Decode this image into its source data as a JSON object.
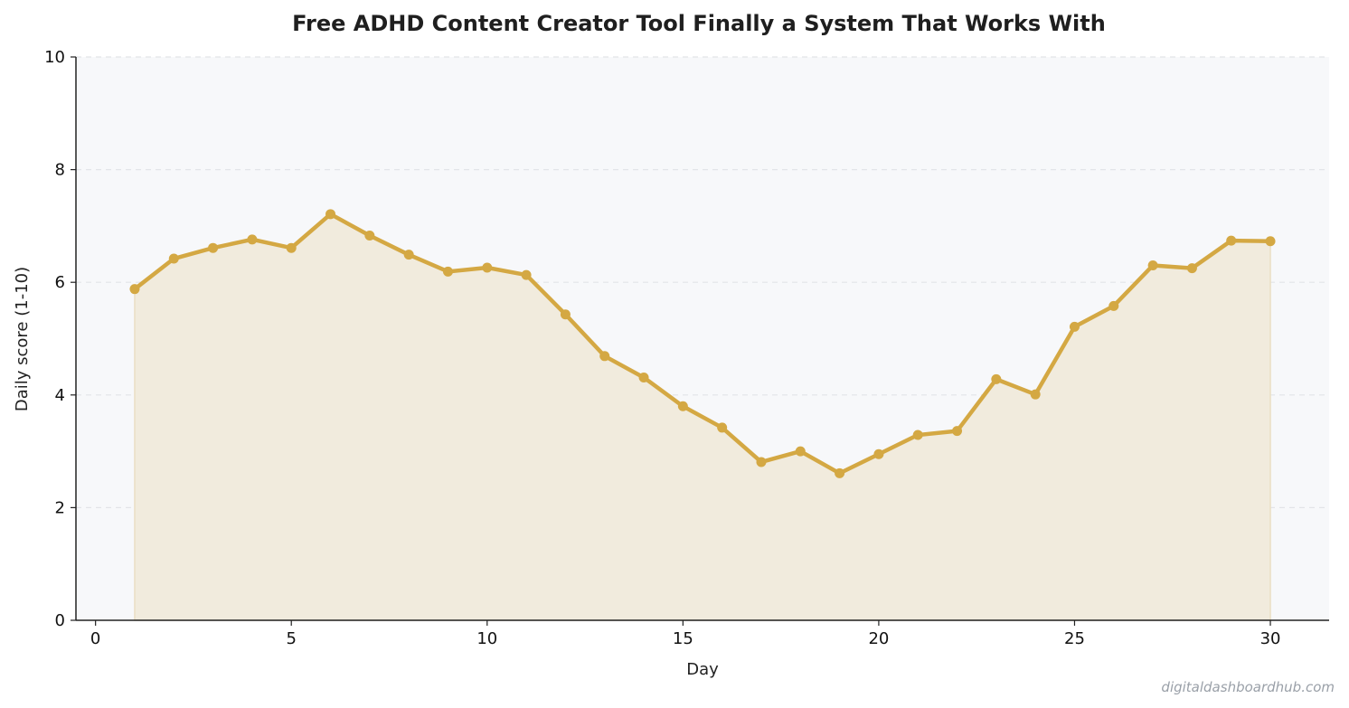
{
  "chart_data": {
    "type": "line",
    "title": "Free ADHD Content Creator Tool  Finally a System That Works With",
    "xlabel": "Day",
    "ylabel": "Daily score (1-10)",
    "xlim": [
      -0.5,
      31.5
    ],
    "ylim": [
      0,
      10
    ],
    "xticks": [
      0,
      5,
      10,
      15,
      20,
      25,
      30
    ],
    "yticks": [
      0,
      2,
      4,
      6,
      8,
      10
    ],
    "grid": "horizontal-dashed",
    "legend": "none",
    "area_fill": true,
    "series": [
      {
        "color": "#d4a843",
        "x": [
          1,
          2,
          3,
          4,
          5,
          6,
          7,
          8,
          9,
          10,
          11,
          12,
          13,
          14,
          15,
          16,
          17,
          18,
          19,
          20,
          21,
          22,
          23,
          24,
          25,
          26,
          27,
          28,
          29,
          30
        ],
        "y": [
          5.88,
          6.42,
          6.61,
          6.76,
          6.61,
          7.21,
          6.83,
          6.49,
          6.19,
          6.26,
          6.13,
          5.43,
          4.69,
          4.31,
          3.8,
          3.42,
          2.81,
          3.0,
          2.61,
          2.95,
          3.29,
          3.36,
          4.28,
          4.01,
          5.21,
          5.58,
          6.3,
          6.25,
          6.74,
          6.73
        ]
      }
    ],
    "colors": {
      "line": "#d4a843",
      "fill": "#f1ebdd",
      "plot_background": "#f7f8fa",
      "grid": "#e2e4e8"
    },
    "watermark": "digitaldashboardhub.com"
  }
}
